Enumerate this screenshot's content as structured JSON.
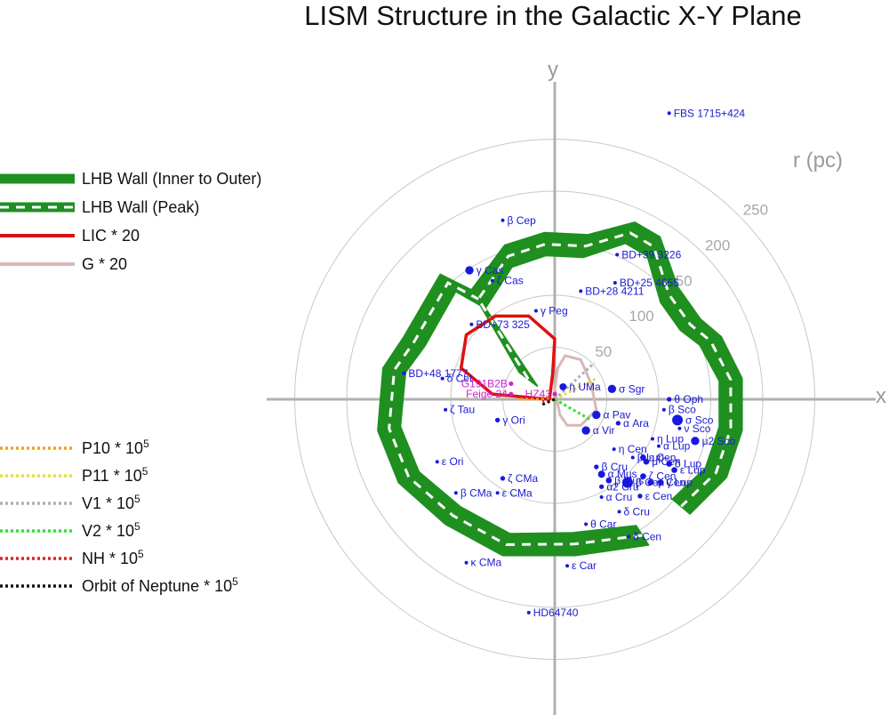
{
  "chart_data": {
    "type": "scatter",
    "title": "LISM Structure in the Galactic X-Y Plane",
    "xlabel": "x",
    "ylabel": "y",
    "radial_label": "r (pc)",
    "radial_ticks": [
      50,
      100,
      150,
      200,
      250
    ],
    "grid": true,
    "colors": {
      "star": "#1818e0",
      "white_dwarf": "#cc22cc",
      "lhb_wall": "#1f8f1f",
      "lic": "#e01010",
      "g": "#d9b8b8",
      "axes": "#b0b0b0",
      "rings": "#c8c8c8"
    },
    "legend_upper": [
      {
        "label": "LHB Wall (Inner to Outer)",
        "style": "wall",
        "color": "#1f8f1f"
      },
      {
        "label": "LHB Wall (Peak)",
        "style": "wall-peak",
        "color": "#1f8f1f"
      },
      {
        "label": "LIC * 20",
        "style": "solid",
        "color": "#e01010"
      },
      {
        "label": "G * 20",
        "style": "solid",
        "color": "#d9b8b8"
      }
    ],
    "legend_lower": [
      {
        "base": "P10 * 10",
        "exp": "5",
        "color": "#f0a020"
      },
      {
        "base": "P11 * 10",
        "exp": "5",
        "color": "#e0e040"
      },
      {
        "base": "V1 * 10",
        "exp": "5",
        "color": "#b0b0b0"
      },
      {
        "base": "V2 * 10",
        "exp": "5",
        "color": "#30e030"
      },
      {
        "base": "NH * 10",
        "exp": "5",
        "color": "#e02020"
      },
      {
        "base": "Orbit of Neptune * 10",
        "exp": "5",
        "color": "#111111"
      }
    ],
    "lhb_wall": {
      "inner": [
        [
          -34,
          26
        ],
        [
          -57,
          75
        ],
        [
          -30,
          105
        ],
        [
          -10,
          125
        ],
        [
          20,
          121
        ],
        [
          45,
          102
        ],
        [
          73,
          92
        ],
        [
          102,
          68
        ],
        [
          130,
          50
        ],
        [
          152,
          20
        ],
        [
          150,
          -5
        ],
        [
          138,
          -40
        ],
        [
          107,
          -70
        ],
        [
          76,
          -88
        ],
        [
          45,
          -107
        ],
        [
          0,
          -116
        ],
        [
          -60,
          -100
        ],
        [
          -95,
          -70
        ],
        [
          -115,
          -40
        ],
        [
          -118,
          -5
        ],
        [
          -100,
          40
        ],
        [
          -69,
          76
        ]
      ],
      "outer": [
        [
          -34,
          26
        ],
        [
          -80,
          105
        ],
        [
          -48,
          148
        ],
        [
          -10,
          160
        ],
        [
          32,
          158
        ],
        [
          77,
          170
        ],
        [
          101,
          156
        ],
        [
          118,
          108
        ],
        [
          140,
          77
        ],
        [
          160,
          60
        ],
        [
          180,
          20
        ],
        [
          180,
          -30
        ],
        [
          165,
          -75
        ],
        [
          130,
          -110
        ],
        [
          90,
          -140
        ],
        [
          20,
          -150
        ],
        [
          -50,
          -150
        ],
        [
          -105,
          -120
        ],
        [
          -150,
          -80
        ],
        [
          -170,
          -30
        ],
        [
          -165,
          30
        ],
        [
          -145,
          60
        ],
        [
          -110,
          120
        ],
        [
          -80,
          105
        ]
      ]
    },
    "lic": [
      [
        -5,
        0
      ],
      [
        -60,
        5
      ],
      [
        -90,
        30
      ],
      [
        -85,
        62
      ],
      [
        -57,
        80
      ],
      [
        -25,
        80
      ],
      [
        0,
        58
      ],
      [
        -2,
        25
      ],
      [
        -5,
        0
      ]
    ],
    "g": [
      [
        5,
        -15
      ],
      [
        12,
        -25
      ],
      [
        25,
        -25
      ],
      [
        40,
        -10
      ],
      [
        35,
        15
      ],
      [
        25,
        38
      ],
      [
        10,
        42
      ],
      [
        3,
        30
      ],
      [
        0,
        10
      ],
      [
        5,
        -15
      ]
    ],
    "trajectories": {
      "P10": [
        [
          0,
          0
        ],
        [
          -35,
          0
        ]
      ],
      "P11": [
        [
          0,
          0
        ],
        [
          40,
          20
        ]
      ],
      "V1": [
        [
          0,
          0
        ],
        [
          38,
          35
        ]
      ],
      "V2": [
        [
          0,
          0
        ],
        [
          35,
          -20
        ]
      ],
      "NH": [
        [
          0,
          0
        ],
        [
          -12,
          -2
        ]
      ],
      "Neptune": [
        [
          0,
          0
        ],
        [
          -14,
          -6
        ]
      ]
    },
    "stars": [
      {
        "name": "FBS 1715+424",
        "x": 110,
        "y": 275,
        "size": 3
      },
      {
        "name": "β Cep",
        "x": -50,
        "y": 172,
        "size": 3
      },
      {
        "name": "BD+39 3226",
        "x": 60,
        "y": 139,
        "size": 3
      },
      {
        "name": "γ Cas",
        "x": -82,
        "y": 124,
        "size": 7
      },
      {
        "name": "ζ Cas",
        "x": -60,
        "y": 114,
        "size": 3
      },
      {
        "name": "BD+25 4655",
        "x": 58,
        "y": 112,
        "size": 3
      },
      {
        "name": "BD+28 4211",
        "x": 25,
        "y": 104,
        "size": 3
      },
      {
        "name": "γ Peg",
        "x": -18,
        "y": 85,
        "size": 3
      },
      {
        "name": "BD+73 325",
        "x": -80,
        "y": 72,
        "size": 3
      },
      {
        "name": "BD+48 1777",
        "x": -145,
        "y": 25,
        "size": 3
      },
      {
        "name": "δ Cet",
        "x": -108,
        "y": 20,
        "size": 3
      },
      {
        "name": "η UMa",
        "x": 8,
        "y": 12,
        "size": 6
      },
      {
        "name": "σ Sgr",
        "x": 55,
        "y": 10,
        "size": 7
      },
      {
        "name": "θ Oph",
        "x": 110,
        "y": 0,
        "size": 4
      },
      {
        "name": "β Sco",
        "x": 105,
        "y": -10,
        "size": 3
      },
      {
        "name": "ζ Tau",
        "x": -105,
        "y": -10,
        "size": 3
      },
      {
        "name": "γ Ori",
        "x": -55,
        "y": -20,
        "size": 4
      },
      {
        "name": "α Pav",
        "x": 40,
        "y": -15,
        "size": 7
      },
      {
        "name": "α Ara",
        "x": 61,
        "y": -23,
        "size": 4
      },
      {
        "name": "α Vir",
        "x": 30,
        "y": -30,
        "size": 7
      },
      {
        "name": "σ Sco",
        "x": 118,
        "y": -20,
        "size": 9
      },
      {
        "name": "ν Sco",
        "x": 120,
        "y": -28,
        "size": 3
      },
      {
        "name": "μ2 Sco",
        "x": 135,
        "y": -40,
        "size": 7
      },
      {
        "name": "η Lup",
        "x": 94,
        "y": -38,
        "size": 3
      },
      {
        "name": "α Lup",
        "x": 100,
        "y": -45,
        "size": 3
      },
      {
        "name": "η Cen",
        "x": 57,
        "y": -48,
        "size": 3
      },
      {
        "name": "β Lup",
        "x": 75,
        "y": -56,
        "size": 3
      },
      {
        "name": "ε Cen",
        "x": 85,
        "y": -56,
        "size": 5
      },
      {
        "name": "μ Cen",
        "x": 88,
        "y": -60,
        "size": 5
      },
      {
        "name": "δ Lup",
        "x": 110,
        "y": -62,
        "size": 5
      },
      {
        "name": "ε Lup",
        "x": 115,
        "y": -68,
        "size": 5
      },
      {
        "name": "β Cru",
        "x": 40,
        "y": -65,
        "size": 4
      },
      {
        "name": "α Mus",
        "x": 45,
        "y": -72,
        "size": 6
      },
      {
        "name": "β Mus",
        "x": 52,
        "y": -78,
        "size": 5
      },
      {
        "name": "β Cen",
        "x": 70,
        "y": -80,
        "size": 9
      },
      {
        "name": "ζ Cen",
        "x": 85,
        "y": -74,
        "size": 5
      },
      {
        "name": "φ Cen",
        "x": 92,
        "y": -80,
        "size": 5
      },
      {
        "name": "γ Lup",
        "x": 102,
        "y": -80,
        "size": 5
      },
      {
        "name": "α2 Cru",
        "x": 45,
        "y": -84,
        "size": 4
      },
      {
        "name": "α Cru",
        "x": 45,
        "y": -94,
        "size": 3
      },
      {
        "name": "ε Cen",
        "x": 82,
        "y": -93,
        "size": 4
      },
      {
        "name": "δ Cru",
        "x": 62,
        "y": -108,
        "size": 3
      },
      {
        "name": "θ Car",
        "x": 30,
        "y": -120,
        "size": 3
      },
      {
        "name": "δ Cen",
        "x": 71,
        "y": -132,
        "size": 3
      },
      {
        "name": "ζ CMa",
        "x": -50,
        "y": -76,
        "size": 4
      },
      {
        "name": "ε CMa",
        "x": -55,
        "y": -90,
        "size": 3
      },
      {
        "name": "ε Ori",
        "x": -113,
        "y": -60,
        "size": 3
      },
      {
        "name": "β CMa",
        "x": -95,
        "y": -90,
        "size": 3
      },
      {
        "name": "κ CMa",
        "x": -85,
        "y": -157,
        "size": 3
      },
      {
        "name": "ε Car",
        "x": 12,
        "y": -160,
        "size": 3
      },
      {
        "name": "HD64740",
        "x": -25,
        "y": -205,
        "size": 3
      }
    ],
    "white_dwarfs": [
      {
        "name": "G191B2B",
        "x": -42,
        "y": 15,
        "size": 3
      },
      {
        "name": "Feige 24",
        "x": -42,
        "y": 5,
        "size": 3
      },
      {
        "name": "HZ43",
        "x": 0,
        "y": 5,
        "size": 3
      }
    ]
  }
}
